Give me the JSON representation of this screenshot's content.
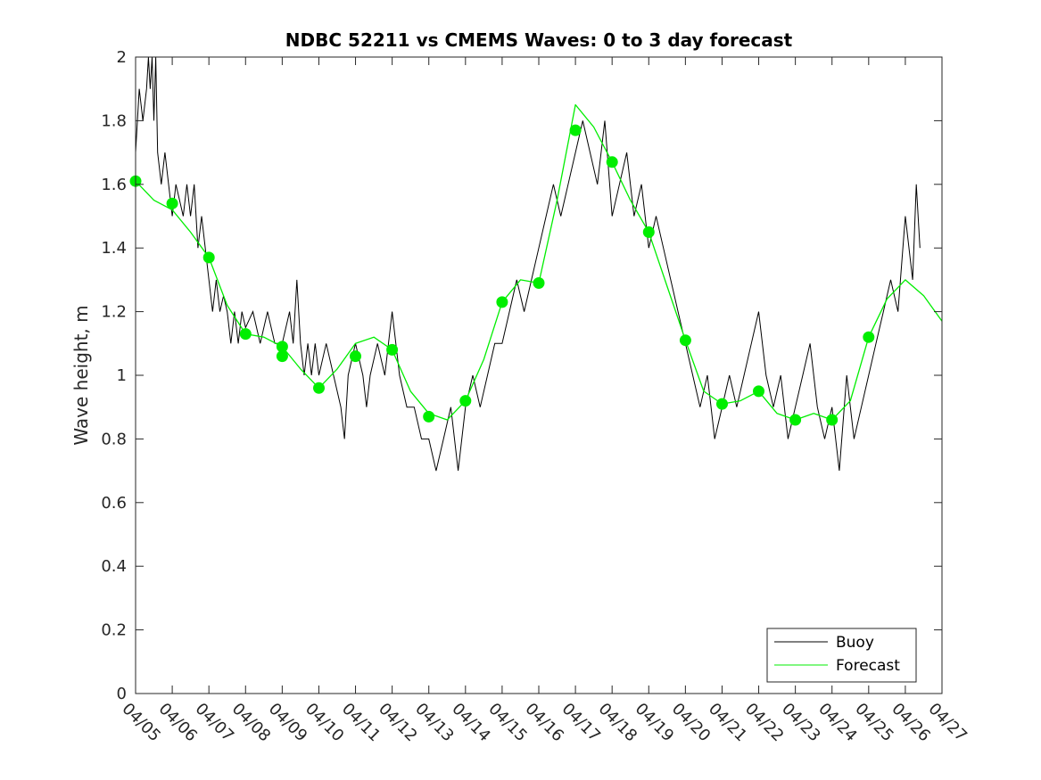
{
  "chart_data": {
    "type": "line",
    "title": "NDBC 52211 vs CMEMS Waves: 0 to 3 day forecast",
    "xlabel": "",
    "ylabel": "Wave height, m",
    "x_tick_labels": [
      "04/05",
      "04/06",
      "04/07",
      "04/08",
      "04/09",
      "04/10",
      "04/11",
      "04/12",
      "04/13",
      "04/14",
      "04/15",
      "04/16",
      "04/17",
      "04/18",
      "04/19",
      "04/20",
      "04/21",
      "04/22",
      "04/23",
      "04/24",
      "04/25",
      "04/26",
      "04/27"
    ],
    "y_tick_labels": [
      "0",
      "0.2",
      "0.4",
      "0.6",
      "0.8",
      "1",
      "1.2",
      "1.4",
      "1.6",
      "1.8",
      "2"
    ],
    "xlim": [
      0,
      22
    ],
    "ylim": [
      0,
      2
    ],
    "grid": false,
    "legend": {
      "placement": "bottom-right",
      "entries": [
        "Buoy",
        "Forecast"
      ]
    },
    "colors": {
      "buoy": "#000000",
      "forecast": "#00ee00",
      "axes": "#262626"
    },
    "series": [
      {
        "name": "Buoy",
        "x": [
          0.0,
          0.1,
          0.2,
          0.3,
          0.35,
          0.4,
          0.45,
          0.5,
          0.55,
          0.6,
          0.7,
          0.8,
          0.9,
          1.0,
          1.1,
          1.2,
          1.3,
          1.4,
          1.5,
          1.6,
          1.7,
          1.8,
          1.9,
          2.0,
          2.1,
          2.2,
          2.3,
          2.4,
          2.5,
          2.6,
          2.7,
          2.8,
          2.9,
          3.0,
          3.2,
          3.4,
          3.6,
          3.8,
          4.0,
          4.2,
          4.3,
          4.4,
          4.5,
          4.6,
          4.7,
          4.8,
          4.9,
          5.0,
          5.2,
          5.4,
          5.6,
          5.7,
          5.8,
          6.0,
          6.2,
          6.3,
          6.4,
          6.6,
          6.8,
          7.0,
          7.2,
          7.4,
          7.6,
          7.8,
          8.0,
          8.2,
          8.4,
          8.6,
          8.8,
          9.0,
          9.2,
          9.4,
          9.6,
          9.8,
          10.0,
          10.2,
          10.4,
          10.6,
          10.8,
          11.0,
          11.2,
          11.4,
          11.6,
          11.8,
          12.0,
          12.2,
          12.4,
          12.6,
          12.8,
          13.0,
          13.2,
          13.4,
          13.6,
          13.8,
          14.0,
          14.2,
          14.4,
          14.6,
          14.8,
          15.0,
          15.2,
          15.4,
          15.6,
          15.8,
          16.0,
          16.2,
          16.4,
          16.6,
          16.8,
          17.0,
          17.2,
          17.4,
          17.6,
          17.8,
          18.0,
          18.2,
          18.4,
          18.6,
          18.8,
          19.0,
          19.2,
          19.4,
          19.6,
          19.8,
          20.0,
          20.2,
          20.4,
          20.6,
          20.8,
          21.0,
          21.2,
          21.3,
          21.4
        ],
        "y": [
          1.7,
          1.9,
          1.8,
          1.9,
          2.0,
          1.9,
          2.0,
          1.8,
          2.0,
          1.7,
          1.6,
          1.7,
          1.6,
          1.5,
          1.6,
          1.55,
          1.5,
          1.6,
          1.5,
          1.6,
          1.4,
          1.5,
          1.4,
          1.3,
          1.2,
          1.3,
          1.2,
          1.25,
          1.2,
          1.1,
          1.2,
          1.1,
          1.2,
          1.15,
          1.2,
          1.1,
          1.2,
          1.1,
          1.1,
          1.2,
          1.1,
          1.3,
          1.1,
          1.0,
          1.1,
          1.0,
          1.1,
          1.0,
          1.1,
          1.0,
          0.9,
          0.8,
          1.0,
          1.1,
          1.0,
          0.9,
          1.0,
          1.1,
          1.0,
          1.2,
          1.0,
          0.9,
          0.9,
          0.8,
          0.8,
          0.7,
          0.8,
          0.9,
          0.7,
          0.9,
          1.0,
          0.9,
          1.0,
          1.1,
          1.1,
          1.2,
          1.3,
          1.2,
          1.3,
          1.4,
          1.5,
          1.6,
          1.5,
          1.6,
          1.7,
          1.8,
          1.7,
          1.6,
          1.8,
          1.5,
          1.6,
          1.7,
          1.5,
          1.6,
          1.4,
          1.5,
          1.4,
          1.3,
          1.2,
          1.1,
          1.0,
          0.9,
          1.0,
          0.8,
          0.9,
          1.0,
          0.9,
          1.0,
          1.1,
          1.2,
          1.0,
          0.9,
          1.0,
          0.8,
          0.9,
          1.0,
          1.1,
          0.9,
          0.8,
          0.9,
          0.7,
          1.0,
          0.8,
          0.9,
          1.0,
          1.1,
          1.2,
          1.3,
          1.2,
          1.5,
          1.3,
          1.6,
          1.4
        ]
      },
      {
        "name": "Forecast",
        "x": [
          0.0,
          0.5,
          1.0,
          1.5,
          2.0,
          2.5,
          3.0,
          3.5,
          4.0,
          4.5,
          5.0,
          5.5,
          6.0,
          6.5,
          7.0,
          7.5,
          8.0,
          8.5,
          9.0,
          9.5,
          10.0,
          10.5,
          11.0,
          11.5,
          12.0,
          12.5,
          13.0,
          13.5,
          14.0,
          14.5,
          15.0,
          15.5,
          16.0,
          16.5,
          17.0,
          17.5,
          18.0,
          18.5,
          19.0,
          19.5,
          20.0,
          20.5,
          21.0,
          21.5,
          22.0
        ],
        "y": [
          1.61,
          1.55,
          1.52,
          1.45,
          1.37,
          1.22,
          1.13,
          1.12,
          1.09,
          1.02,
          0.96,
          1.02,
          1.1,
          1.12,
          1.08,
          0.95,
          0.88,
          0.86,
          0.92,
          1.05,
          1.23,
          1.3,
          1.29,
          1.55,
          1.85,
          1.78,
          1.67,
          1.55,
          1.45,
          1.28,
          1.11,
          0.95,
          0.91,
          0.92,
          0.95,
          0.88,
          0.86,
          0.88,
          0.86,
          0.92,
          1.12,
          1.24,
          1.3,
          1.25,
          1.17
        ]
      }
    ],
    "markers": {
      "x": [
        0,
        1,
        2,
        3,
        4,
        4,
        5,
        6,
        7,
        8,
        9,
        10,
        11,
        12,
        13,
        14,
        15,
        16,
        17,
        18,
        19,
        20
      ],
      "y": [
        1.61,
        1.54,
        1.37,
        1.13,
        1.09,
        1.06,
        0.96,
        1.06,
        1.08,
        0.87,
        0.92,
        1.23,
        1.29,
        1.77,
        1.67,
        1.45,
        1.11,
        0.91,
        0.95,
        0.86,
        0.86,
        1.12
      ]
    }
  }
}
